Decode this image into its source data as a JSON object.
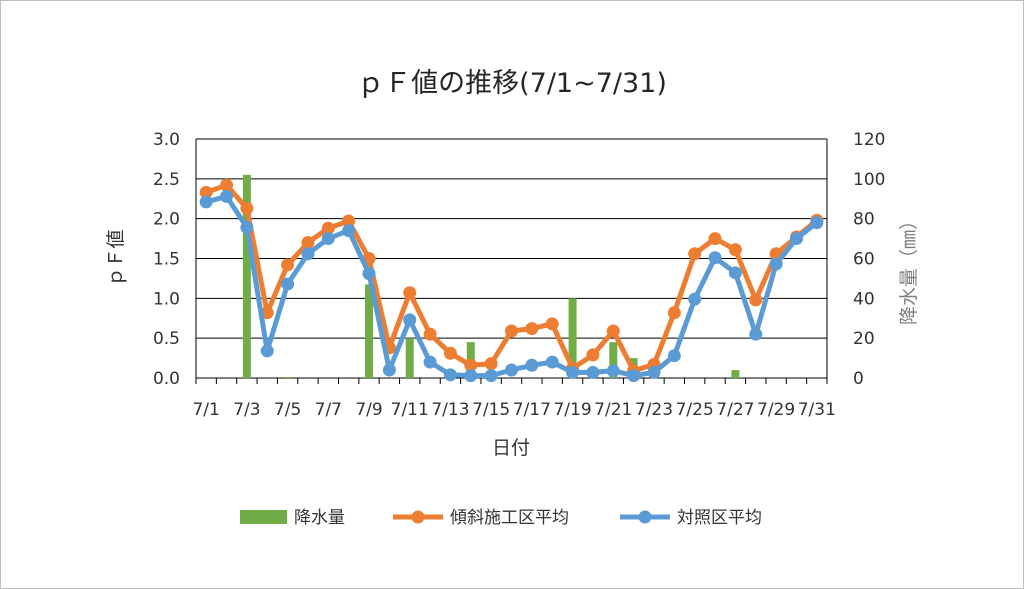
{
  "chart_data": {
    "type": "bar+line",
    "title": "ｐＦ値の推移(7/1~7/31)",
    "xlabel": "日付",
    "ylabel_left": "ｐＦ値",
    "ylabel_right": "降水量（㎜）",
    "categories": [
      "7/1",
      "7/2",
      "7/3",
      "7/4",
      "7/5",
      "7/6",
      "7/7",
      "7/8",
      "7/9",
      "7/10",
      "7/11",
      "7/12",
      "7/13",
      "7/14",
      "7/15",
      "7/16",
      "7/17",
      "7/18",
      "7/19",
      "7/20",
      "7/21",
      "7/22",
      "7/23",
      "7/24",
      "7/25",
      "7/26",
      "7/27",
      "7/28",
      "7/29",
      "7/30",
      "7/31"
    ],
    "x_tick_labels": [
      "7/1",
      "7/3",
      "7/5",
      "7/7",
      "7/9",
      "7/11",
      "7/13",
      "7/15",
      "7/17",
      "7/19",
      "7/21",
      "7/23",
      "7/25",
      "7/27",
      "7/29",
      "7/31"
    ],
    "ylim_left": [
      0,
      3.0
    ],
    "yticks_left": [
      "0.0",
      "0.5",
      "1.0",
      "1.5",
      "2.0",
      "2.5",
      "3.0"
    ],
    "ylim_right": [
      0,
      120
    ],
    "yticks_right": [
      "0",
      "20",
      "40",
      "60",
      "80",
      "100",
      "120"
    ],
    "grid": true,
    "legend_position": "bottom",
    "bar_series": {
      "name": "降水量",
      "axis": "right",
      "color": "#70ad47",
      "values": [
        0,
        0,
        102,
        0,
        0.5,
        0,
        0,
        0,
        47,
        0,
        20,
        0,
        0,
        18,
        0,
        0,
        0,
        0,
        40,
        0,
        18,
        10,
        0,
        0,
        0,
        0,
        4,
        0,
        0,
        0,
        0
      ]
    },
    "line_series": [
      {
        "name": "傾斜施工区平均",
        "axis": "left",
        "color": "#ed7d31",
        "values": [
          2.33,
          2.42,
          2.13,
          0.82,
          1.42,
          1.7,
          1.88,
          1.97,
          1.5,
          0.38,
          1.07,
          0.55,
          0.31,
          0.16,
          0.18,
          0.59,
          0.62,
          0.68,
          0.12,
          0.29,
          0.59,
          0.09,
          0.17,
          0.82,
          1.56,
          1.75,
          1.61,
          0.98,
          1.56,
          1.77,
          1.98
        ]
      },
      {
        "name": "対照区平均",
        "axis": "left",
        "color": "#5b9bd5",
        "values": [
          2.21,
          2.28,
          1.89,
          0.34,
          1.18,
          1.56,
          1.75,
          1.85,
          1.31,
          0.1,
          0.73,
          0.2,
          0.04,
          0.03,
          0.03,
          0.1,
          0.16,
          0.2,
          0.07,
          0.07,
          0.09,
          0.03,
          0.07,
          0.28,
          0.99,
          1.51,
          1.32,
          0.55,
          1.43,
          1.75,
          1.95
        ]
      }
    ]
  }
}
